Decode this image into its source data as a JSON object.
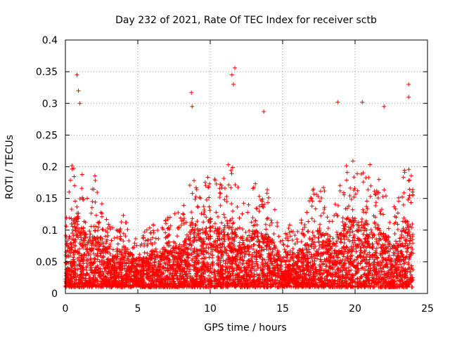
{
  "chart_data": {
    "type": "scatter",
    "title": "Day 232 of 2021, Rate Of TEC Index for receiver sctb",
    "xlabel": "GPS time / hours",
    "ylabel": "ROTI / TECUs",
    "xlim": [
      0,
      25
    ],
    "ylim": [
      0,
      0.4
    ],
    "xticks": [
      "0",
      "5",
      "10",
      "15",
      "20",
      "25"
    ],
    "yticks": [
      "0",
      "0.05",
      "0.1",
      "0.15",
      "0.2",
      "0.25",
      "0.3",
      "0.35",
      "0.4"
    ],
    "grid": true,
    "marker": "plus",
    "color": "#ff0000",
    "x_data_range": [
      0,
      24
    ],
    "series": [
      {
        "envelope": {
          "x": [
            0,
            0.5,
            1,
            1.5,
            2,
            2.5,
            3,
            3.5,
            4,
            4.5,
            5,
            5.5,
            6,
            6.5,
            7,
            7.5,
            8,
            8.5,
            9,
            9.5,
            10,
            10.5,
            11,
            11.5,
            12,
            12.5,
            13,
            13.5,
            14,
            14.5,
            15,
            15.5,
            16,
            16.5,
            17,
            17.5,
            18,
            18.5,
            19,
            19.5,
            20,
            20.5,
            21,
            21.5,
            22,
            22.5,
            23,
            23.5,
            24
          ],
          "typical_max": [
            0.12,
            0.2,
            0.22,
            0.14,
            0.18,
            0.15,
            0.1,
            0.09,
            0.12,
            0.1,
            0.08,
            0.09,
            0.1,
            0.09,
            0.11,
            0.12,
            0.12,
            0.16,
            0.18,
            0.16,
            0.2,
            0.17,
            0.2,
            0.2,
            0.15,
            0.14,
            0.17,
            0.15,
            0.16,
            0.12,
            0.08,
            0.1,
            0.1,
            0.12,
            0.15,
            0.17,
            0.15,
            0.13,
            0.17,
            0.2,
            0.2,
            0.18,
            0.2,
            0.18,
            0.16,
            0.12,
            0.14,
            0.2,
            0.18
          ]
        },
        "outliers": [
          {
            "x": 0.8,
            "y": 0.345
          },
          {
            "x": 0.9,
            "y": 0.32
          },
          {
            "x": 1.0,
            "y": 0.3
          },
          {
            "x": 8.7,
            "y": 0.317
          },
          {
            "x": 8.75,
            "y": 0.295
          },
          {
            "x": 11.5,
            "y": 0.345
          },
          {
            "x": 11.7,
            "y": 0.356
          },
          {
            "x": 11.6,
            "y": 0.33
          },
          {
            "x": 13.7,
            "y": 0.287
          },
          {
            "x": 18.8,
            "y": 0.302
          },
          {
            "x": 20.5,
            "y": 0.302
          },
          {
            "x": 22.0,
            "y": 0.295
          },
          {
            "x": 23.7,
            "y": 0.33
          },
          {
            "x": 23.7,
            "y": 0.31
          }
        ]
      }
    ]
  }
}
